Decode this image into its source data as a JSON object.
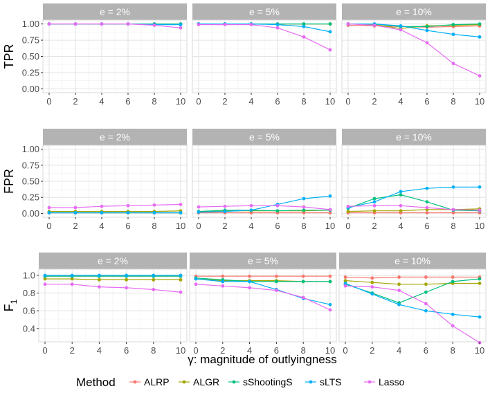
{
  "chart_data": {
    "type": "line",
    "layout": "faceted grid",
    "x": [
      0,
      2,
      4,
      6,
      8,
      10
    ],
    "x_ticks": [
      "0",
      "2",
      "4",
      "6",
      "8",
      "10"
    ],
    "xlabel": "γ: magnitude of outlyingness",
    "grid": true,
    "legend": {
      "title": "Method",
      "placement": "bottom",
      "entries": [
        {
          "name": "ALRP",
          "color": "#F8766D"
        },
        {
          "name": "ALGR",
          "color": "#A3A500"
        },
        {
          "name": "sShootingS",
          "color": "#00BF7D"
        },
        {
          "name": "sLTS",
          "color": "#00B0F6"
        },
        {
          "name": "Lasso",
          "color": "#E76BF3"
        }
      ]
    },
    "rows": [
      {
        "ylabel": "TPR",
        "ylabel_sub": "",
        "ylim": [
          -0.06,
          1.06
        ],
        "y_ticks": [
          0,
          0.25,
          0.5,
          0.75,
          1
        ],
        "y_tick_labels": [
          "0.00",
          "0.25",
          "0.50",
          "0.75",
          "1.00"
        ],
        "panels": [
          {
            "strip": "e = 2%",
            "series": [
              {
                "name": "ALRP",
                "values": [
                  1.0,
                  1.0,
                  1.0,
                  1.0,
                  1.0,
                  1.0
                ]
              },
              {
                "name": "ALGR",
                "values": [
                  1.0,
                  1.0,
                  1.0,
                  1.0,
                  1.0,
                  1.0
                ]
              },
              {
                "name": "sShootingS",
                "values": [
                  1.0,
                  1.0,
                  1.0,
                  1.0,
                  1.0,
                  1.0
                ]
              },
              {
                "name": "sLTS",
                "values": [
                  1.0,
                  1.0,
                  1.0,
                  1.0,
                  0.99,
                  0.99
                ]
              },
              {
                "name": "Lasso",
                "values": [
                  1.0,
                  1.0,
                  1.0,
                  1.0,
                  0.98,
                  0.94
                ]
              }
            ]
          },
          {
            "strip": "e = 5%",
            "series": [
              {
                "name": "ALRP",
                "values": [
                  1.0,
                  1.0,
                  1.0,
                  1.0,
                  1.0,
                  1.0
                ]
              },
              {
                "name": "ALGR",
                "values": [
                  1.0,
                  1.0,
                  1.0,
                  1.0,
                  1.0,
                  1.0
                ]
              },
              {
                "name": "sShootingS",
                "values": [
                  1.0,
                  1.0,
                  1.0,
                  1.0,
                  1.0,
                  1.0
                ]
              },
              {
                "name": "sLTS",
                "values": [
                  1.0,
                  1.0,
                  1.0,
                  0.99,
                  0.96,
                  0.88
                ]
              },
              {
                "name": "Lasso",
                "values": [
                  0.99,
                  0.99,
                  0.99,
                  0.94,
                  0.8,
                  0.6
                ]
              }
            ]
          },
          {
            "strip": "e = 10%",
            "series": [
              {
                "name": "ALRP",
                "values": [
                  0.98,
                  0.97,
                  0.96,
                  0.95,
                  0.96,
                  0.97
                ]
              },
              {
                "name": "ALGR",
                "values": [
                  1.0,
                  0.99,
                  0.93,
                  0.97,
                  0.98,
                  0.99
                ]
              },
              {
                "name": "sShootingS",
                "values": [
                  1.0,
                  1.0,
                  0.96,
                  0.96,
                  0.99,
                  1.0
                ]
              },
              {
                "name": "sLTS",
                "values": [
                  1.0,
                  1.0,
                  0.97,
                  0.9,
                  0.84,
                  0.8
                ]
              },
              {
                "name": "Lasso",
                "values": [
                  1.0,
                  0.98,
                  0.91,
                  0.71,
                  0.39,
                  0.2
                ]
              }
            ]
          }
        ]
      },
      {
        "ylabel": "FPR",
        "ylabel_sub": "",
        "ylim": [
          -0.06,
          1.06
        ],
        "y_ticks": [
          0,
          0.25,
          0.5,
          0.75,
          1
        ],
        "y_tick_labels": [
          "0.00",
          "0.25",
          "0.50",
          "0.75",
          "1.00"
        ],
        "panels": [
          {
            "strip": "e = 2%",
            "series": [
              {
                "name": "ALRP",
                "values": [
                  0.01,
                  0.01,
                  0.01,
                  0.01,
                  0.01,
                  0.01
                ]
              },
              {
                "name": "ALGR",
                "values": [
                  0.03,
                  0.03,
                  0.03,
                  0.03,
                  0.03,
                  0.04
                ]
              },
              {
                "name": "sShootingS",
                "values": [
                  0.01,
                  0.01,
                  0.01,
                  0.01,
                  0.01,
                  0.01
                ]
              },
              {
                "name": "sLTS",
                "values": [
                  0.01,
                  0.01,
                  0.01,
                  0.01,
                  0.01,
                  0.01
                ]
              },
              {
                "name": "Lasso",
                "values": [
                  0.09,
                  0.09,
                  0.11,
                  0.12,
                  0.13,
                  0.14
                ]
              }
            ]
          },
          {
            "strip": "e = 5%",
            "series": [
              {
                "name": "ALRP",
                "values": [
                  0.01,
                  0.01,
                  0.01,
                  0.01,
                  0.01,
                  0.01
                ]
              },
              {
                "name": "ALGR",
                "values": [
                  0.03,
                  0.04,
                  0.04,
                  0.04,
                  0.04,
                  0.05
                ]
              },
              {
                "name": "sShootingS",
                "values": [
                  0.03,
                  0.05,
                  0.05,
                  0.04,
                  0.05,
                  0.05
                ]
              },
              {
                "name": "sLTS",
                "values": [
                  0.02,
                  0.03,
                  0.05,
                  0.14,
                  0.23,
                  0.27
                ]
              },
              {
                "name": "Lasso",
                "values": [
                  0.1,
                  0.11,
                  0.12,
                  0.12,
                  0.1,
                  0.06
                ]
              }
            ]
          },
          {
            "strip": "e = 10%",
            "series": [
              {
                "name": "ALRP",
                "values": [
                  0.01,
                  0.01,
                  0.01,
                  0.01,
                  0.01,
                  0.01
                ]
              },
              {
                "name": "ALGR",
                "values": [
                  0.03,
                  0.04,
                  0.04,
                  0.06,
                  0.06,
                  0.07
                ]
              },
              {
                "name": "sShootingS",
                "values": [
                  0.08,
                  0.23,
                  0.29,
                  0.18,
                  0.05,
                  0.04
                ]
              },
              {
                "name": "sLTS",
                "values": [
                  0.09,
                  0.18,
                  0.34,
                  0.39,
                  0.41,
                  0.41
                ]
              },
              {
                "name": "Lasso",
                "values": [
                  0.11,
                  0.12,
                  0.12,
                  0.09,
                  0.06,
                  0.05
                ]
              }
            ]
          }
        ]
      },
      {
        "ylabel": "F",
        "ylabel_sub": "1",
        "ylim": [
          0.25,
          1.07
        ],
        "y_ticks": [
          0.4,
          0.6,
          0.8,
          1.0
        ],
        "y_tick_labels": [
          "0.4",
          "0.6",
          "0.8",
          "1.0"
        ],
        "panels": [
          {
            "strip": "e = 2%",
            "series": [
              {
                "name": "ALRP",
                "values": [
                  0.99,
                  0.99,
                  0.99,
                  0.99,
                  0.99,
                  0.99
                ]
              },
              {
                "name": "ALGR",
                "values": [
                  0.96,
                  0.96,
                  0.95,
                  0.95,
                  0.95,
                  0.95
                ]
              },
              {
                "name": "sShootingS",
                "values": [
                  0.99,
                  0.99,
                  0.99,
                  0.99,
                  0.99,
                  0.99
                ]
              },
              {
                "name": "sLTS",
                "values": [
                  1.0,
                  1.0,
                  1.0,
                  1.0,
                  1.0,
                  1.0
                ]
              },
              {
                "name": "Lasso",
                "values": [
                  0.9,
                  0.9,
                  0.87,
                  0.86,
                  0.84,
                  0.81
                ]
              }
            ]
          },
          {
            "strip": "e = 5%",
            "series": [
              {
                "name": "ALRP",
                "values": [
                  0.99,
                  0.99,
                  0.99,
                  0.99,
                  0.99,
                  0.99
                ]
              },
              {
                "name": "ALGR",
                "values": [
                  0.96,
                  0.94,
                  0.94,
                  0.94,
                  0.93,
                  0.93
                ]
              },
              {
                "name": "sShootingS",
                "values": [
                  0.97,
                  0.95,
                  0.93,
                  0.93,
                  0.93,
                  0.93
                ]
              },
              {
                "name": "sLTS",
                "values": [
                  0.96,
                  0.93,
                  0.93,
                  0.84,
                  0.74,
                  0.67
                ]
              },
              {
                "name": "Lasso",
                "values": [
                  0.9,
                  0.88,
                  0.86,
                  0.83,
                  0.75,
                  0.61
                ]
              }
            ]
          },
          {
            "strip": "e = 10%",
            "series": [
              {
                "name": "ALRP",
                "values": [
                  0.98,
                  0.97,
                  0.98,
                  0.98,
                  0.98,
                  0.98
                ]
              },
              {
                "name": "ALGR",
                "values": [
                  0.94,
                  0.92,
                  0.9,
                  0.9,
                  0.91,
                  0.91
                ]
              },
              {
                "name": "sShootingS",
                "values": [
                  0.9,
                  0.8,
                  0.69,
                  0.81,
                  0.93,
                  0.96
                ]
              },
              {
                "name": "sLTS",
                "values": [
                  0.91,
                  0.79,
                  0.67,
                  0.6,
                  0.56,
                  0.53
                ]
              },
              {
                "name": "Lasso",
                "values": [
                  0.88,
                  0.87,
                  0.83,
                  0.68,
                  0.43,
                  0.24
                ]
              }
            ]
          }
        ]
      }
    ]
  }
}
